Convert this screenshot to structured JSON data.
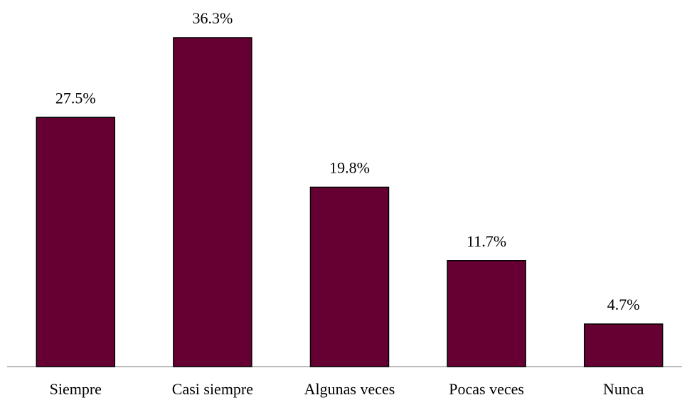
{
  "chart_data": {
    "type": "bar",
    "categories": [
      "Siempre",
      "Casi siempre",
      "Algunas veces",
      "Pocas veces",
      "Nunca"
    ],
    "values": [
      27.5,
      36.3,
      19.8,
      11.7,
      4.7
    ],
    "value_labels": [
      "27.5%",
      "36.3%",
      "19.8%",
      "11.7%",
      "4.7%"
    ],
    "color": "#660033"
  }
}
